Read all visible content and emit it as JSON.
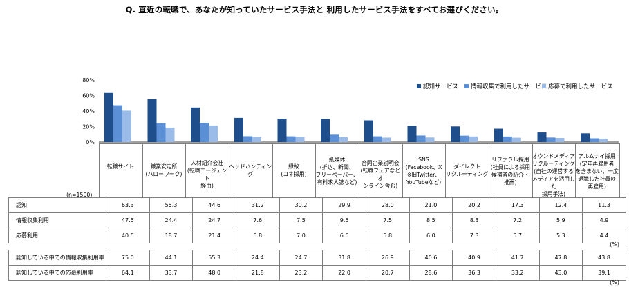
{
  "title": "Q.  直近の転職で、あなたが知っていたサービス手法と 利用したサービス手法をすべてお選びください。",
  "n_label": "(n=1500)",
  "unit_label": "(%)",
  "colors": {
    "series1": "#1f4e8c",
    "series2": "#5b8fd6",
    "series3": "#9bbbe8"
  },
  "chart_data": {
    "type": "bar",
    "ylim": [
      0,
      80
    ],
    "yticks": [
      "0%",
      "20%",
      "40%",
      "60%",
      "80%"
    ],
    "legend_position": "top-right",
    "categories": [
      "転職サイト",
      "職業安定所 (ハローワーク)",
      "人材紹介会社 (転職エージェント経由)",
      "ヘッドハンティング",
      "縁故 (コネ採用)",
      "紙媒体 (折込、新聞、フリーペーパー、有料求人誌など)",
      "合同企業説明会 (転職フェアなどオンライン含む)",
      "SNS (Facebook、X ※旧Twitter、YouTubeなど)",
      "ダイレクトリクルーティング",
      "リファラル採用 (社員による採用候補者の紹介・推薦)",
      "オウンドメディアリクルーティング (自社の運営するメディアを活用した採用手法)",
      "アルムナイ採用 (定年再雇用者を含まない、一度退職した社員の再雇用)"
    ],
    "category_lines": [
      [
        "転職サイト"
      ],
      [
        "職業安定所",
        "(ハローワーク)"
      ],
      [
        "人材紹介会社",
        "(転職エージェント",
        "経由)"
      ],
      [
        "ヘッドハンティング"
      ],
      [
        "縁故",
        "(コネ採用)"
      ],
      [
        "紙媒体",
        "(折込、新聞、",
        "フリーペーパー、",
        "有料求人誌など)"
      ],
      [
        "合同企業説明会",
        "(転職フェアなどオ",
        "ンライン含む)"
      ],
      [
        "SNS",
        "(Facebook、X",
        "※旧Twitter、",
        "YouTubeなど)"
      ],
      [
        "ダイレクト",
        "リクルーティング"
      ],
      [
        "リファラル採用",
        "(社員による採用",
        "候補者の紹介・",
        "推薦)"
      ],
      [
        "オウンドメディア",
        "リクルーティング",
        "(自社の運営する",
        "メディアを活用した",
        "採用手法)"
      ],
      [
        "アルムナイ採用",
        "(定年再雇用者",
        "を含まない、一度",
        "退職した社員の",
        "再雇用)"
      ]
    ],
    "series": [
      {
        "name": "認知サービス",
        "values": [
          63.3,
          55.3,
          44.6,
          31.2,
          30.2,
          29.9,
          28.0,
          21.0,
          20.2,
          17.3,
          12.4,
          11.3
        ]
      },
      {
        "name": "情報収集で利用したサービス",
        "values": [
          47.5,
          24.4,
          24.7,
          7.6,
          7.5,
          9.5,
          7.5,
          8.5,
          8.3,
          7.2,
          5.9,
          4.9
        ]
      },
      {
        "name": "応募で利用したサービス",
        "values": [
          40.5,
          18.7,
          21.4,
          6.8,
          7.0,
          6.6,
          5.8,
          6.0,
          7.3,
          5.7,
          5.3,
          4.4
        ]
      }
    ]
  },
  "table1": {
    "rows": [
      {
        "label": "認知",
        "values": [
          "63.3",
          "55.3",
          "44.6",
          "31.2",
          "30.2",
          "29.9",
          "28.0",
          "21.0",
          "20.2",
          "17.3",
          "12.4",
          "11.3"
        ]
      },
      {
        "label": "情報収集利用",
        "values": [
          "47.5",
          "24.4",
          "24.7",
          "7.6",
          "7.5",
          "9.5",
          "7.5",
          "8.5",
          "8.3",
          "7.2",
          "5.9",
          "4.9"
        ]
      },
      {
        "label": "応募利用",
        "values": [
          "40.5",
          "18.7",
          "21.4",
          "6.8",
          "7.0",
          "6.6",
          "5.8",
          "6.0",
          "7.3",
          "5.7",
          "5.3",
          "4.4"
        ]
      }
    ]
  },
  "table2": {
    "rows": [
      {
        "label": "認知している中での情報収集利用率",
        "values": [
          "75.0",
          "44.1",
          "55.3",
          "24.4",
          "24.7",
          "31.8",
          "26.9",
          "40.6",
          "40.9",
          "41.7",
          "47.8",
          "43.8"
        ]
      },
      {
        "label": "認知している中での応募利用率",
        "values": [
          "64.1",
          "33.7",
          "48.0",
          "21.8",
          "23.2",
          "22.0",
          "20.7",
          "28.6",
          "36.3",
          "33.2",
          "43.0",
          "39.1"
        ]
      }
    ]
  }
}
